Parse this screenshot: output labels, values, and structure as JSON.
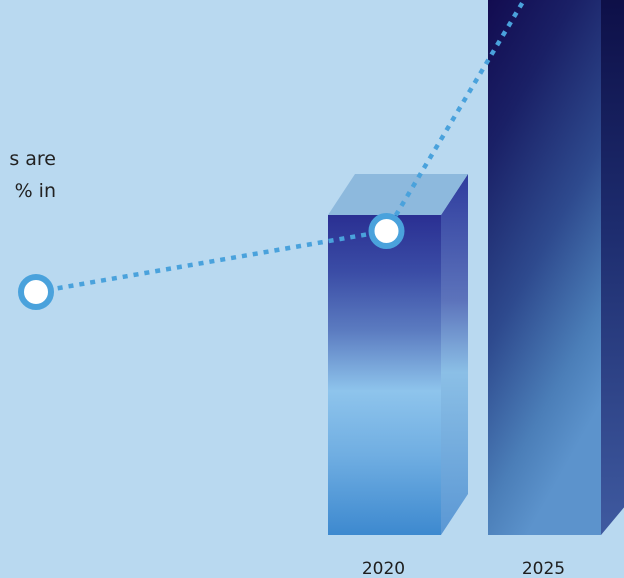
{
  "text_fragments": {
    "line1": "s are",
    "line2": "% in"
  },
  "colors": {
    "background": "#b9d9f0",
    "marker_ring": "#4aa2dc",
    "marker_fill": "#ffffff",
    "dotted_line": "#4aa2dc"
  },
  "chart_data": {
    "type": "bar",
    "categories": [
      "2020",
      "2025"
    ],
    "values": [
      2,
      3.6
    ],
    "bar_style": "3d-prism",
    "trend_line": "dotted",
    "grid": false,
    "legend": "none"
  }
}
